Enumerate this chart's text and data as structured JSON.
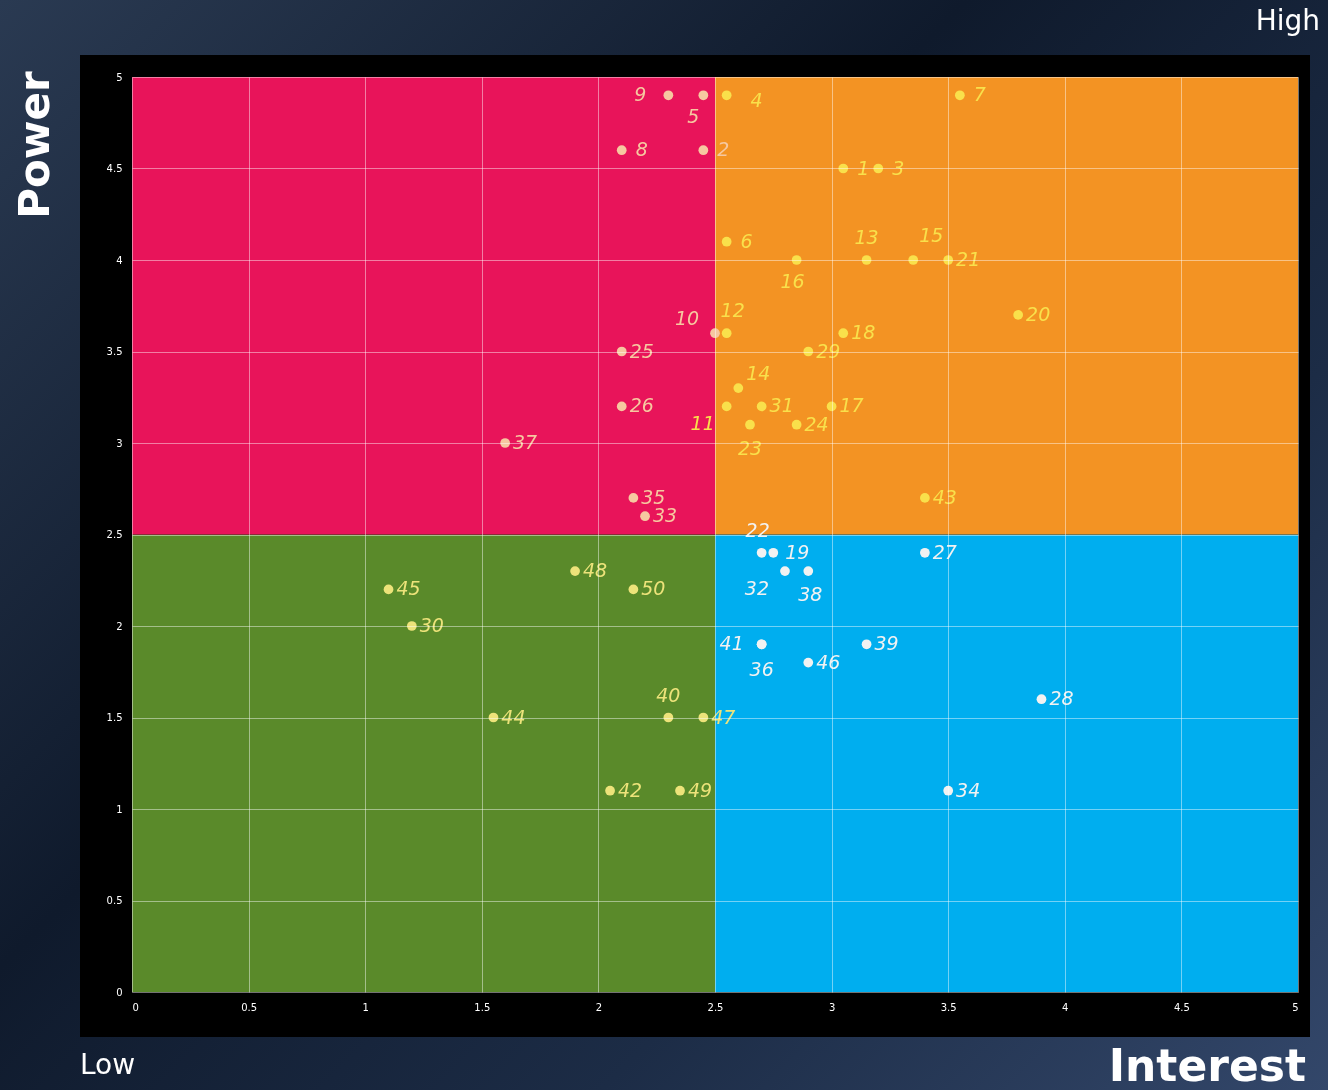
{
  "chart_data": {
    "type": "scatter",
    "xlabel": "Interest",
    "ylabel": "Power",
    "annotations": [
      "High",
      "Low"
    ],
    "stacked": true,
    "series": [
      {
        "type": "bar",
        "x": [
          1.25,
          3.75
        ],
        "values": [
          2.5,
          2.5
        ],
        "colors": [
          "#5a8a2a",
          "#00aeef"
        ]
      },
      {
        "type": "bar",
        "x": [
          1.25,
          3.75
        ],
        "values": [
          2.5,
          2.5
        ],
        "colors": [
          "#e8145a",
          "#f39323"
        ]
      },
      {
        "name": "1",
        "color": "#f9e04b",
        "x": [
          3.05
        ],
        "values": [
          4.5
        ]
      },
      {
        "name": "2",
        "color": "#f6c8a0",
        "x": [
          2.45
        ],
        "values": [
          4.6
        ]
      },
      {
        "name": "3",
        "color": "#f9e04b",
        "x": [
          3.2
        ],
        "values": [
          4.5
        ]
      },
      {
        "name": "4",
        "color": "#f9e04b",
        "x": [
          2.55
        ],
        "values": [
          4.9
        ]
      },
      {
        "name": "5",
        "color": "#f6c8a0",
        "x": [
          2.45
        ],
        "values": [
          4.9
        ]
      },
      {
        "name": "6",
        "color": "#f9e04b",
        "x": [
          2.55
        ],
        "values": [
          4.1
        ]
      },
      {
        "name": "7",
        "color": "#f9e04b",
        "x": [
          3.55
        ],
        "values": [
          4.9
        ]
      },
      {
        "name": "8",
        "color": "#f6c8a0",
        "x": [
          2.1
        ],
        "values": [
          4.6
        ]
      },
      {
        "name": "9",
        "color": "#f6c8a0",
        "x": [
          2.3
        ],
        "values": [
          4.9
        ]
      },
      {
        "name": "10",
        "color": "#f6c8a0",
        "x": [
          2.5
        ],
        "values": [
          3.6
        ]
      },
      {
        "name": "11",
        "color": "#f9e04b",
        "x": [
          2.55
        ],
        "values": [
          3.2
        ]
      },
      {
        "name": "12",
        "color": "#f9e04b",
        "x": [
          2.55
        ],
        "values": [
          3.6
        ]
      },
      {
        "name": "13",
        "color": "#f9e04b",
        "x": [
          3.15
        ],
        "values": [
          4
        ]
      },
      {
        "name": "14",
        "color": "#f9e04b",
        "x": [
          2.6
        ],
        "values": [
          3.3
        ]
      },
      {
        "name": "15",
        "color": "#f9e04b",
        "x": [
          3.35
        ],
        "values": [
          4
        ]
      },
      {
        "name": "16",
        "color": "#f9e04b",
        "x": [
          2.85
        ],
        "values": [
          4
        ]
      },
      {
        "name": "17",
        "color": "#f9e04b",
        "x": [
          3
        ],
        "values": [
          3.2
        ]
      },
      {
        "name": "18",
        "color": "#f9e04b",
        "x": [
          3.05
        ],
        "values": [
          3.6
        ]
      },
      {
        "name": "19",
        "color": "#f2f2f2",
        "x": [
          2.75
        ],
        "values": [
          2.4
        ]
      },
      {
        "name": "20",
        "color": "#f9e04b",
        "x": [
          3.8
        ],
        "values": [
          3.7
        ]
      },
      {
        "name": "21",
        "color": "#f9e04b",
        "x": [
          3.5
        ],
        "values": [
          4
        ]
      },
      {
        "name": "22",
        "color": "#f2f2f2",
        "x": [
          2.7
        ],
        "values": [
          2.4
        ]
      },
      {
        "name": "23",
        "color": "#f9e04b",
        "x": [
          2.65
        ],
        "values": [
          3.1
        ]
      },
      {
        "name": "24",
        "color": "#f9e04b",
        "x": [
          2.85
        ],
        "values": [
          3.1
        ]
      },
      {
        "name": "25",
        "color": "#f6c8a0",
        "x": [
          2.1
        ],
        "values": [
          3.5
        ]
      },
      {
        "name": "26",
        "color": "#f6c8a0",
        "x": [
          2.1
        ],
        "values": [
          3.2
        ]
      },
      {
        "name": "27",
        "color": "#f2f2f2",
        "x": [
          3.4
        ],
        "values": [
          2.4
        ]
      },
      {
        "name": "28",
        "color": "#f2f2f2",
        "x": [
          3.9
        ],
        "values": [
          1.6
        ]
      },
      {
        "name": "29",
        "color": "#f9e04b",
        "x": [
          2.9
        ],
        "values": [
          3.5
        ]
      },
      {
        "name": "30",
        "color": "#ede37a",
        "x": [
          1.2
        ],
        "values": [
          2
        ]
      },
      {
        "name": "31",
        "color": "#f9e04b",
        "x": [
          2.7
        ],
        "values": [
          3.2
        ]
      },
      {
        "name": "32",
        "color": "#f2f2f2",
        "x": [
          2.8
        ],
        "values": [
          2.3
        ]
      },
      {
        "name": "33",
        "color": "#f6c8a0",
        "x": [
          2.2
        ],
        "values": [
          2.6
        ]
      },
      {
        "name": "34",
        "color": "#f2f2f2",
        "x": [
          3.5
        ],
        "values": [
          1.1
        ]
      },
      {
        "name": "35",
        "color": "#f6c8a0",
        "x": [
          2.15
        ],
        "values": [
          2.7
        ]
      },
      {
        "name": "36",
        "color": "#f2f2f2",
        "x": [
          2.7
        ],
        "values": [
          1.9
        ]
      },
      {
        "name": "37",
        "color": "#f6c8a0",
        "x": [
          1.6
        ],
        "values": [
          3
        ]
      },
      {
        "name": "38",
        "color": "#f2f2f2",
        "x": [
          2.9
        ],
        "values": [
          2.3
        ]
      },
      {
        "name": "39",
        "color": "#f2f2f2",
        "x": [
          3.15
        ],
        "values": [
          1.9
        ]
      },
      {
        "name": "40",
        "color": "#ede37a",
        "x": [
          2.3
        ],
        "values": [
          1.5
        ]
      },
      {
        "name": "41",
        "color": "#f2f2f2",
        "x": [
          2.7
        ],
        "values": [
          1.9
        ]
      },
      {
        "name": "42",
        "color": "#ede37a",
        "x": [
          2.05
        ],
        "values": [
          1.1
        ]
      },
      {
        "name": "43",
        "color": "#f9e04b",
        "x": [
          3.4
        ],
        "values": [
          2.7
        ]
      },
      {
        "name": "44",
        "color": "#ede37a",
        "x": [
          1.55
        ],
        "values": [
          1.5
        ]
      },
      {
        "name": "45",
        "color": "#ede37a",
        "x": [
          1.1
        ],
        "values": [
          2.2
        ]
      },
      {
        "name": "46",
        "color": "#f2f2f2",
        "x": [
          2.9
        ],
        "values": [
          1.8
        ]
      },
      {
        "name": "47",
        "color": "#ede37a",
        "x": [
          2.45
        ],
        "values": [
          1.5
        ]
      },
      {
        "name": "48",
        "color": "#ede37a",
        "x": [
          1.9
        ],
        "values": [
          2.3
        ]
      },
      {
        "name": "49",
        "color": "#ede37a",
        "x": [
          2.35
        ],
        "values": [
          1.1
        ]
      },
      {
        "name": "50",
        "color": "#ede37a",
        "x": [
          2.15
        ],
        "values": [
          2.2
        ]
      }
    ],
    "xlim": [
      0,
      5
    ],
    "ylim": [
      0,
      5
    ],
    "xticks": [
      0,
      0.5,
      1,
      1.5,
      2,
      2.5,
      3,
      3.5,
      4,
      4.5,
      5
    ],
    "yticks": [
      0,
      0.5,
      1,
      1.5,
      2,
      2.5,
      3,
      3.5,
      4,
      4.5,
      5
    ],
    "grid": true,
    "marker": "circle"
  }
}
